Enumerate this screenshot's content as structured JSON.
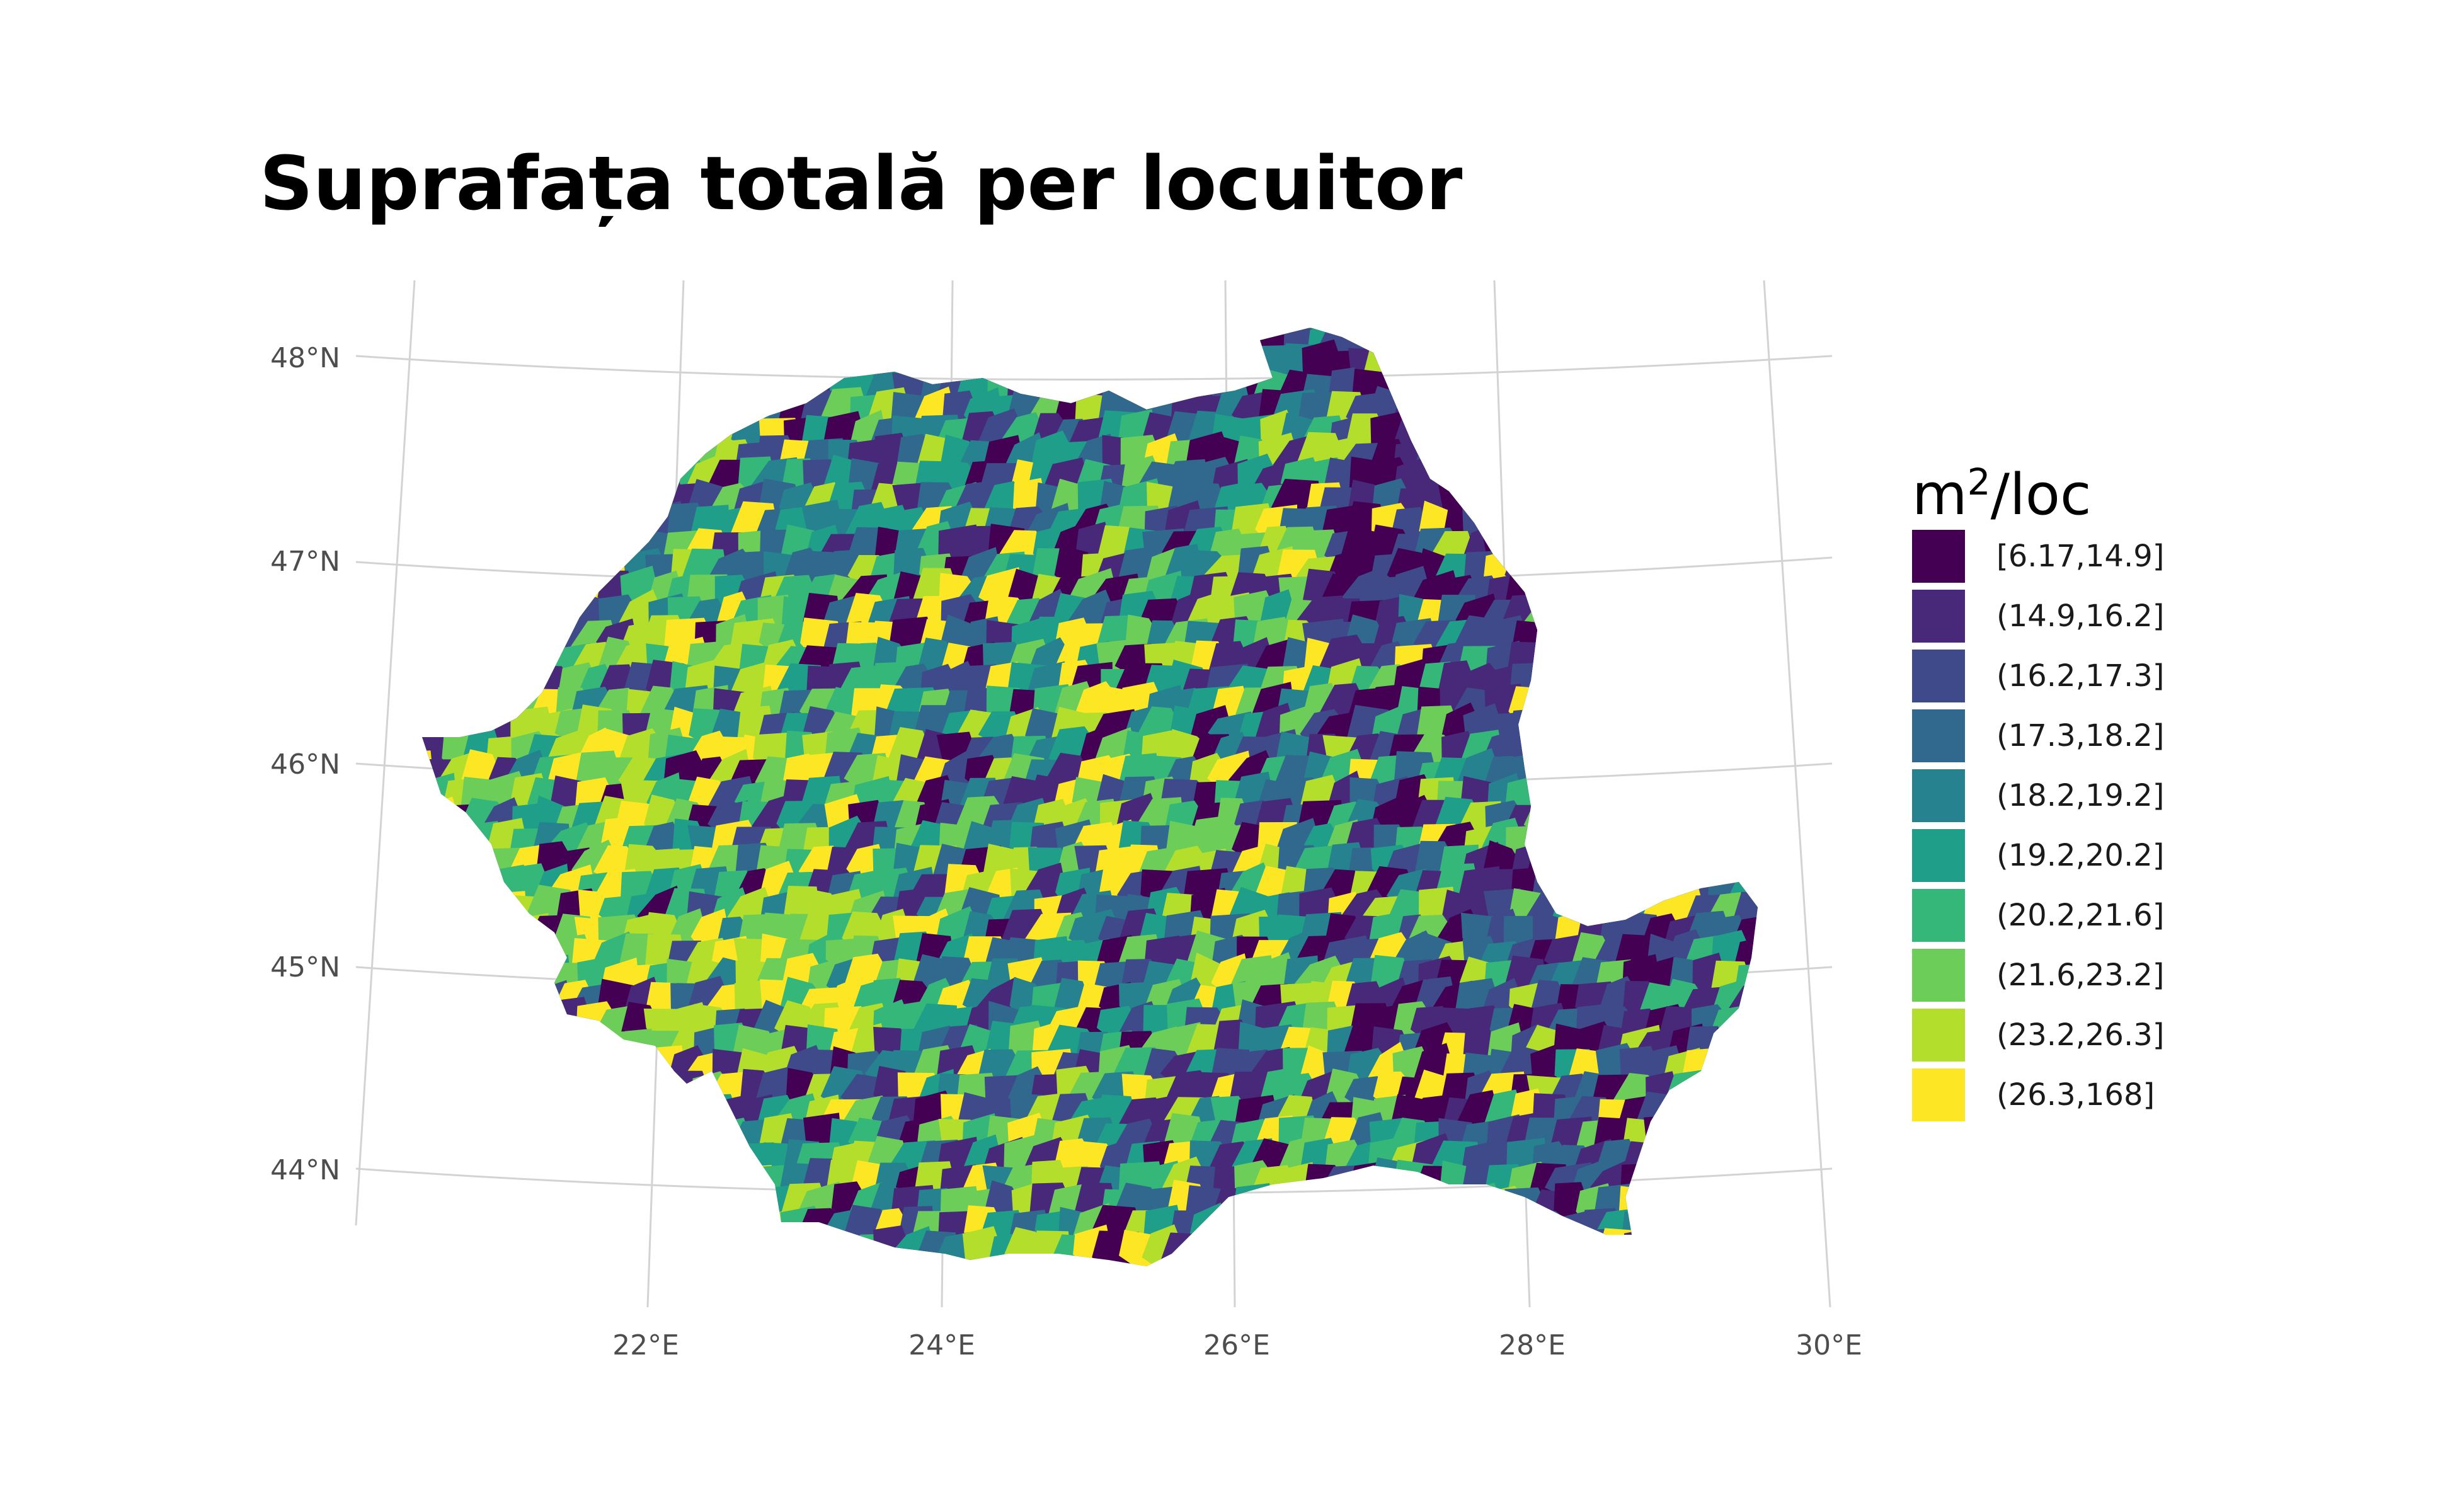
{
  "title": "Suprafața totală per locuitor",
  "map": {
    "region": "Romania",
    "latitude_ticks": [
      "48°N",
      "47°N",
      "46°N",
      "45°N",
      "44°N"
    ],
    "longitude_ticks": [
      "22°E",
      "24°E",
      "26°E",
      "28°E",
      "30°E"
    ]
  },
  "legend": {
    "title_base": "m",
    "title_sup": "2",
    "title_rest": "/loc",
    "items": [
      {
        "label": "[6.17,14.9]",
        "color": "#440154"
      },
      {
        "label": "(14.9,16.2]",
        "color": "#482878"
      },
      {
        "label": "(16.2,17.3]",
        "color": "#3E4A89"
      },
      {
        "label": "(17.3,18.2]",
        "color": "#31688E"
      },
      {
        "label": "(18.2,19.2]",
        "color": "#26828E"
      },
      {
        "label": "(19.2,20.2]",
        "color": "#1F9E89"
      },
      {
        "label": "(20.2,21.6]",
        "color": "#35B779"
      },
      {
        "label": "(21.6,23.2]",
        "color": "#6DCD59"
      },
      {
        "label": "(23.2,26.3]",
        "color": "#B4DE2C"
      },
      {
        "label": "(26.3,168]",
        "color": "#FDE725"
      }
    ]
  }
}
